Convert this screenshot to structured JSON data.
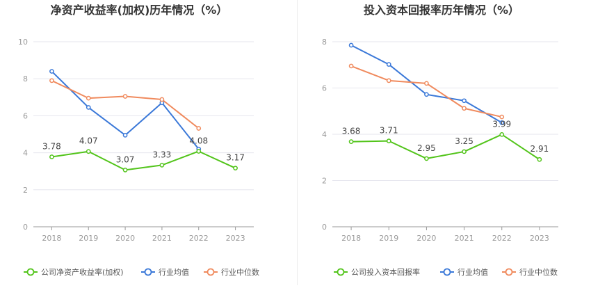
{
  "chart_data": [
    {
      "type": "line",
      "title": "净资产收益率(加权)历年情况（%）",
      "categories": [
        "2018",
        "2019",
        "2020",
        "2021",
        "2022",
        "2023"
      ],
      "ylim": [
        0,
        10
      ],
      "yticks": [
        0,
        2,
        4,
        6,
        8,
        10
      ],
      "grid": true,
      "legend_position": "bottom",
      "series": [
        {
          "name": "公司净资产收益率(加权)",
          "color": "#52c41a",
          "values": [
            3.78,
            4.07,
            3.07,
            3.33,
            4.08,
            3.17
          ],
          "labels": [
            "3.78",
            "4.07",
            "3.07",
            "3.33",
            "4.08",
            "3.17"
          ]
        },
        {
          "name": "行业均值",
          "color": "#3a78d8",
          "values": [
            8.4,
            6.45,
            4.95,
            6.7,
            4.2,
            null
          ]
        },
        {
          "name": "行业中位数",
          "color": "#f08a5d",
          "values": [
            7.9,
            6.95,
            7.05,
            6.88,
            5.32,
            null
          ]
        }
      ]
    },
    {
      "type": "line",
      "title": "投入资本回报率历年情况（%）",
      "categories": [
        "2018",
        "2019",
        "2020",
        "2021",
        "2022",
        "2023"
      ],
      "ylim": [
        0,
        8
      ],
      "yticks": [
        0,
        2,
        4,
        6,
        8
      ],
      "grid": true,
      "legend_position": "bottom",
      "series": [
        {
          "name": "公司投入资本回报率",
          "color": "#52c41a",
          "values": [
            3.68,
            3.71,
            2.95,
            3.25,
            3.99,
            2.91
          ],
          "labels": [
            "3.68",
            "3.71",
            "2.95",
            "3.25",
            "3.99",
            "2.91"
          ]
        },
        {
          "name": "行业均值",
          "color": "#3a78d8",
          "values": [
            7.85,
            7.02,
            5.72,
            5.45,
            4.5,
            null
          ]
        },
        {
          "name": "行业中位数",
          "color": "#f08a5d",
          "values": [
            6.95,
            6.32,
            6.2,
            5.12,
            4.75,
            null
          ]
        }
      ]
    }
  ]
}
